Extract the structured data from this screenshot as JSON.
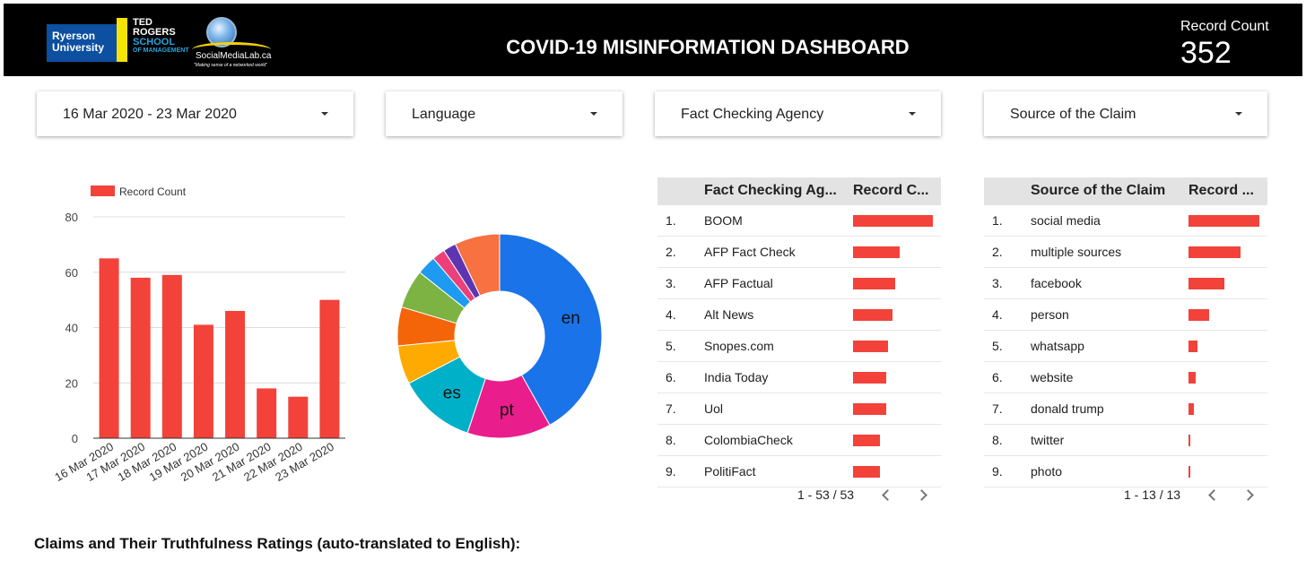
{
  "header": {
    "logo_ryerson": "Ryerson University",
    "logo_ted_1": "TED",
    "logo_ted_2": "ROGERS",
    "logo_ted_3": "SCHOOL",
    "logo_ted_4": "OF MANAGEMENT",
    "logo_sml": "SocialMediaLab.ca",
    "logo_sml_tag": "\"Making sense of a networked world\"",
    "title": "COVID-19 MISINFORMATION DASHBOARD",
    "record_count_label": "Record Count",
    "record_count_value": "352"
  },
  "filters": {
    "date_range": "16 Mar 2020 - 23 Mar 2020",
    "language": "Language",
    "fact_checking_agency": "Fact Checking Agency",
    "source_of_claim": "Source of the Claim"
  },
  "chart_data": [
    {
      "type": "bar",
      "legend": [
        "Record Count"
      ],
      "legend_position": "top-left",
      "categories": [
        "16 Mar 2020",
        "17 Mar 2020",
        "18 Mar 2020",
        "19 Mar 2020",
        "20 Mar 2020",
        "21 Mar 2020",
        "22 Mar 2020",
        "23 Mar 2020"
      ],
      "series": [
        {
          "name": "Record Count",
          "values": [
            65,
            58,
            59,
            41,
            46,
            18,
            15,
            50
          ],
          "color": "#f2423a"
        }
      ],
      "yticks": [
        0,
        20,
        40,
        60,
        80
      ],
      "ylim": [
        0,
        80
      ],
      "grid": true
    },
    {
      "type": "pie",
      "donut": true,
      "slices": [
        {
          "label": "en",
          "value": 41,
          "color": "#1a73e8"
        },
        {
          "label": "pt",
          "value": 13,
          "color": "#e91e8c"
        },
        {
          "label": "es",
          "value": 12,
          "color": "#00b0c8"
        },
        {
          "label": "",
          "value": 6,
          "color": "#ffaa00"
        },
        {
          "label": "",
          "value": 6,
          "color": "#f4650a"
        },
        {
          "label": "",
          "value": 6,
          "color": "#7cb342"
        },
        {
          "label": "",
          "value": 3,
          "color": "#1e9bf0"
        },
        {
          "label": "",
          "value": 2,
          "color": "#ec407a"
        },
        {
          "label": "",
          "value": 2,
          "color": "#5e35b1"
        },
        {
          "label": "",
          "value": 7,
          "color": "#f87140"
        }
      ]
    }
  ],
  "agency_table": {
    "col_name": "Fact Checking Ag...",
    "col_value": "Record C...",
    "rows": [
      {
        "idx": "1.",
        "name": "BOOM",
        "value": 1.0
      },
      {
        "idx": "2.",
        "name": "AFP Fact Check",
        "value": 0.58
      },
      {
        "idx": "3.",
        "name": "AFP Factual",
        "value": 0.53
      },
      {
        "idx": "4.",
        "name": "Alt News",
        "value": 0.49
      },
      {
        "idx": "5.",
        "name": "Snopes.com",
        "value": 0.44
      },
      {
        "idx": "6.",
        "name": "India Today",
        "value": 0.42
      },
      {
        "idx": "7.",
        "name": "Uol",
        "value": 0.42
      },
      {
        "idx": "8.",
        "name": "ColombiaCheck",
        "value": 0.34
      },
      {
        "idx": "9.",
        "name": "PolitiFact",
        "value": 0.34
      }
    ],
    "pager": "1 - 53 / 53"
  },
  "source_table": {
    "col_name": "Source of the Claim",
    "col_value": "Record ...",
    "rows": [
      {
        "idx": "1.",
        "name": "social media",
        "value": 1.0
      },
      {
        "idx": "2.",
        "name": "multiple sources",
        "value": 0.74
      },
      {
        "idx": "3.",
        "name": "facebook",
        "value": 0.5
      },
      {
        "idx": "4.",
        "name": "person",
        "value": 0.29
      },
      {
        "idx": "5.",
        "name": "whatsapp",
        "value": 0.13
      },
      {
        "idx": "6.",
        "name": "website",
        "value": 0.1
      },
      {
        "idx": "7.",
        "name": "donald trump",
        "value": 0.08
      },
      {
        "idx": "8.",
        "name": "twitter",
        "value": 0.03
      },
      {
        "idx": "9.",
        "name": "photo",
        "value": 0.02
      }
    ],
    "pager": "1 - 13 / 13"
  },
  "claims_title": "Claims and Their Truthfulness Ratings (auto-translated to English):"
}
